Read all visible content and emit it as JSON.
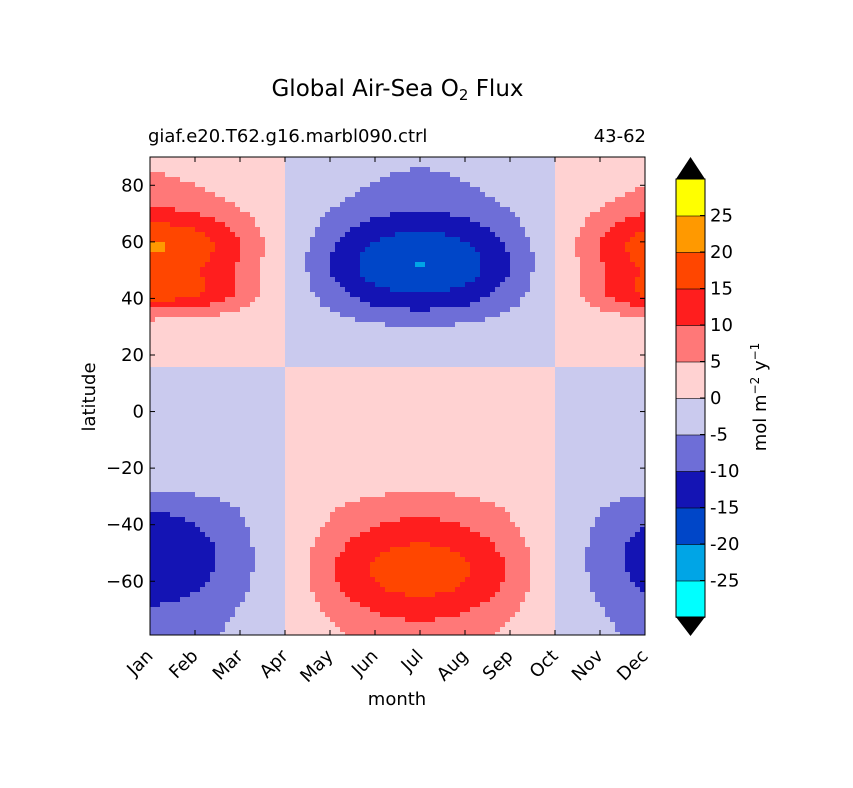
{
  "chart_data": {
    "type": "heatmap",
    "title_prefix": "Global Air-Sea O",
    "title_sub": "2",
    "title_suffix": " Flux",
    "subtitle_left": "giaf.e20.T62.g16.marbl090.ctrl",
    "subtitle_right": "43-62",
    "xlabel": "month",
    "ylabel": "latitude",
    "x_ticks": [
      "Jan",
      "Feb",
      "Mar",
      "Apr",
      "May",
      "Jun",
      "Jul",
      "Aug",
      "Sep",
      "Oct",
      "Nov",
      "Dec"
    ],
    "y_ticks": [
      80,
      60,
      40,
      20,
      0,
      -20,
      -40,
      -60
    ],
    "ylim": [
      -79,
      90
    ],
    "xlim": [
      0,
      11
    ],
    "colorbar": {
      "label": "mol m",
      "label_sup1": "−2",
      "label_mid": " y",
      "label_sup2": "−1",
      "levels": [
        -30,
        -25,
        -20,
        -15,
        -10,
        -5,
        0,
        5,
        10,
        15,
        20,
        25,
        30
      ],
      "tick_labels": [
        "-25",
        "-20",
        "-15",
        "-10",
        "-5",
        "0",
        "5",
        "10",
        "15",
        "20",
        "25"
      ],
      "colors": [
        "#00ffff",
        "#00a5e6",
        "#0046c8",
        "#1414b4",
        "#6e6ed7",
        "#cacaee",
        "#ffd2d2",
        "#ff7878",
        "#ff1e1e",
        "#ff4600",
        "#ff9900",
        "#ffff00"
      ],
      "under_color": "#000000",
      "over_color": "#000000"
    },
    "field": {
      "description": "zonal-mean climatology by month (Jan..Dec) and latitude",
      "features": [
        {
          "month": 0.3,
          "lat": 58,
          "value": 28
        },
        {
          "month": 0.5,
          "lat": 42,
          "value": 18
        },
        {
          "month": 4.9,
          "lat": 53,
          "value": -27
        },
        {
          "month": 6.5,
          "lat": -62,
          "value": 19
        },
        {
          "month": 5.8,
          "lat": -42,
          "value": 13
        },
        {
          "month": 10.7,
          "lat": 60,
          "value": 24
        },
        {
          "month": 10.7,
          "lat": -45,
          "value": -18
        },
        {
          "month": 0.1,
          "lat": -55,
          "value": -14
        },
        {
          "month": 6.0,
          "lat": -14,
          "value": 6
        }
      ]
    }
  }
}
